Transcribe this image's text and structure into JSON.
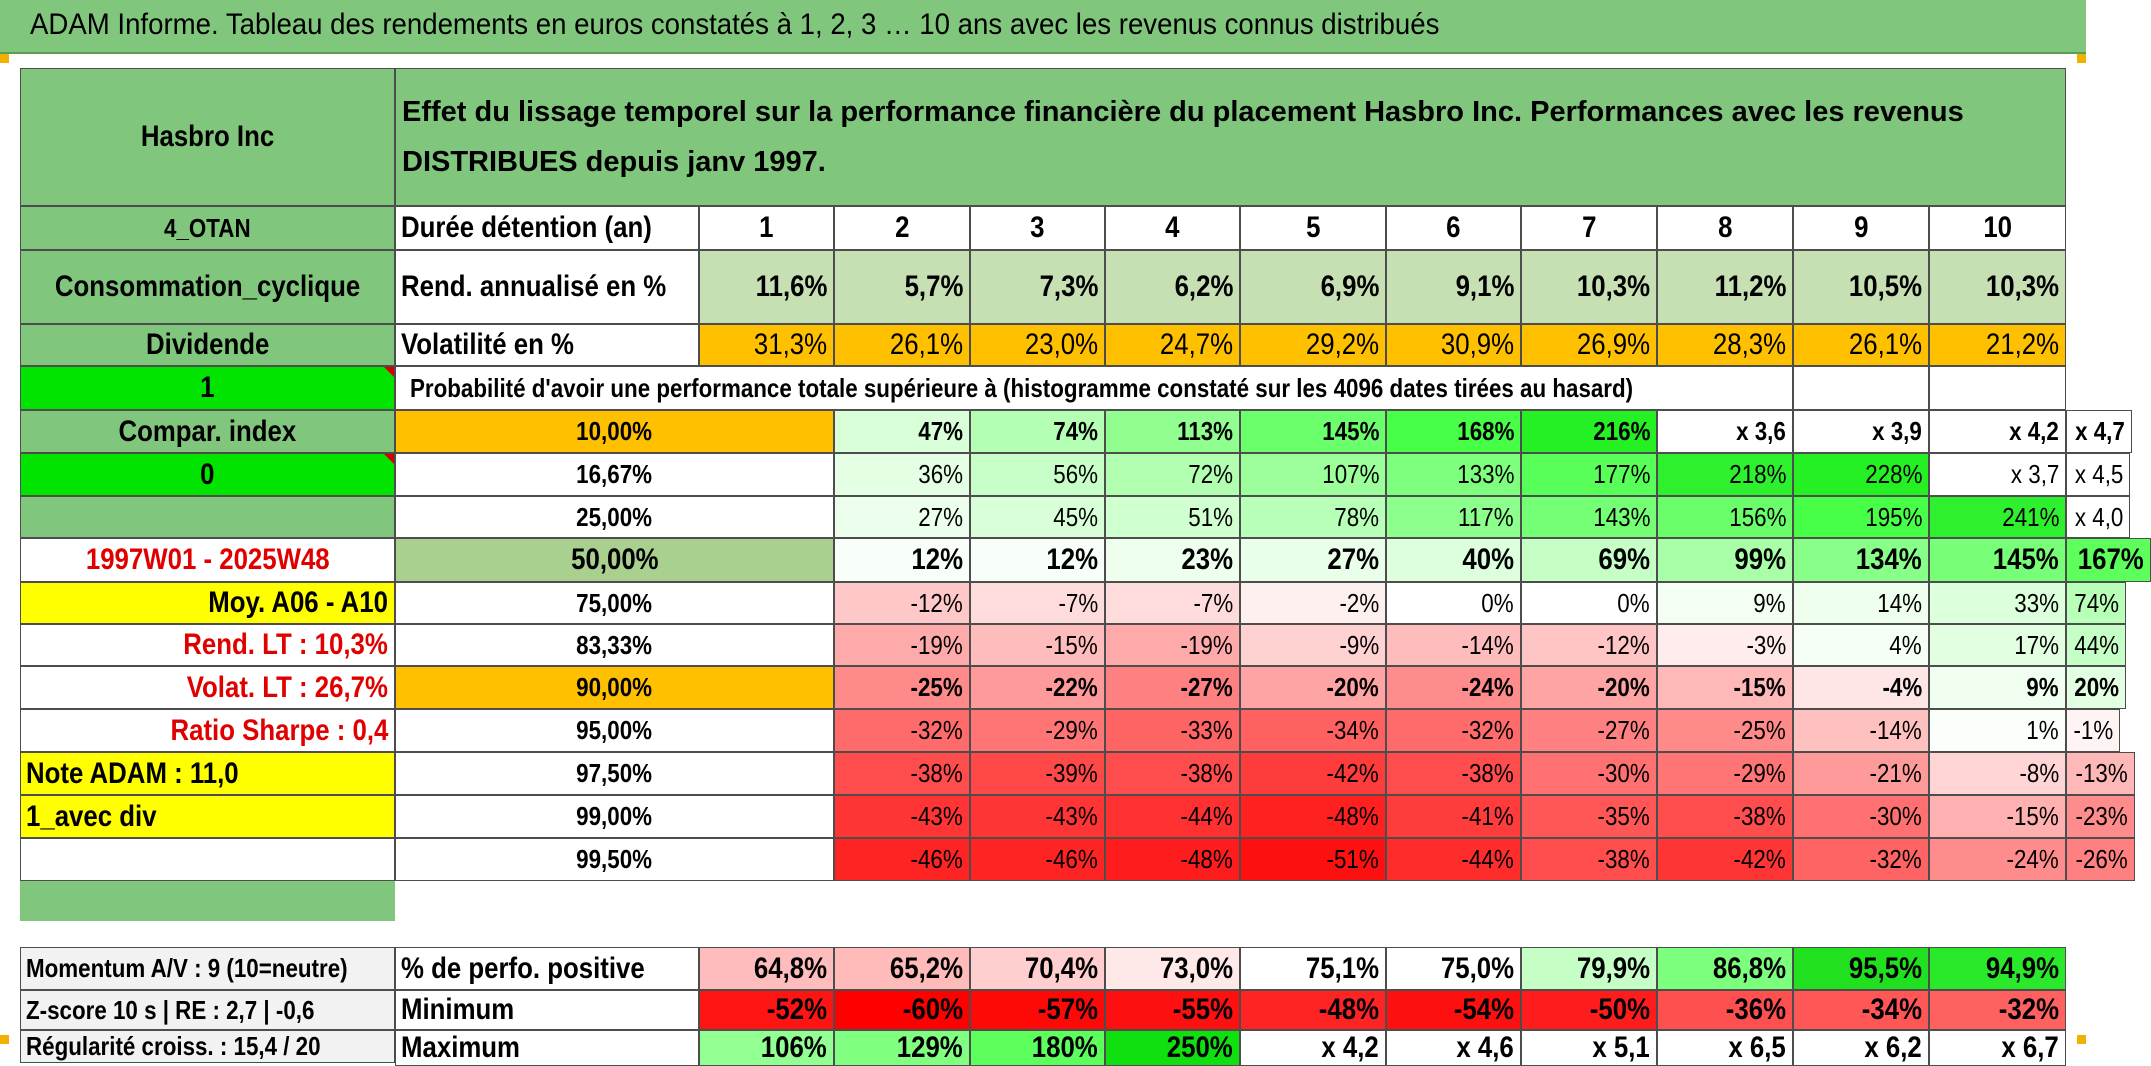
{
  "title": "ADAM Informe. Tableau des rendements en euros constatés à 1, 2, 3 … 10 ans avec les revenus connus distribués",
  "header": {
    "asset": "Hasbro Inc",
    "description": "Effet du lissage temporel sur la performance financière du placement Hasbro Inc. Performances avec les revenus DISTRIBUES depuis janv 1997."
  },
  "sidebar": {
    "category": "4_OTAN",
    "sector": "Consommation_cyclique",
    "income_type": "Dividende",
    "flag1": "1",
    "compar_label": "Compar. index",
    "flag2": "0",
    "period": "1997W01 - 2025W48",
    "moy": "Moy. A06 - A10",
    "rend_lt": "Rend. LT :   10,3%",
    "volat_lt": "Volat. LT :   26,7%",
    "sharpe": "Ratio Sharpe :   0,4",
    "note": "Note ADAM : 11,0",
    "avec_div": "1_avec div",
    "momentum": "Momentum A/V : 9 (10=neutre)",
    "zscore": "Z-score 10 s | RE : 2,7 | -0,6",
    "regularite": "Régularité croiss. : 15,4 / 20"
  },
  "durations": {
    "label": "Durée détention (an)",
    "values": [
      "1",
      "2",
      "3",
      "4",
      "5",
      "6",
      "7",
      "8",
      "9",
      "10"
    ]
  },
  "rend_annualise": {
    "label": "Rend. annualisé en %",
    "values": [
      "11,6%",
      "5,7%",
      "7,3%",
      "6,2%",
      "6,9%",
      "9,1%",
      "10,3%",
      "11,2%",
      "10,5%",
      "10,3%"
    ]
  },
  "volatilite": {
    "label": "Volatilité en %",
    "values": [
      "31,3%",
      "26,1%",
      "23,0%",
      "24,7%",
      "29,2%",
      "30,9%",
      "26,9%",
      "28,3%",
      "26,1%",
      "21,2%"
    ]
  },
  "probability_title": "Probabilité d'avoir une performance totale supérieure à (histogramme constaté sur les 4096 dates tirées au hasard)",
  "probability_rows": [
    {
      "pct": "10,00%",
      "values": [
        "47%",
        "74%",
        "113%",
        "145%",
        "168%",
        "216%",
        "x 3,6",
        "x 3,9",
        "x 4,2",
        "x 4,7"
      ]
    },
    {
      "pct": "16,67%",
      "values": [
        "36%",
        "56%",
        "72%",
        "107%",
        "133%",
        "177%",
        "218%",
        "228%",
        "x 3,7",
        "x 4,5"
      ]
    },
    {
      "pct": "25,00%",
      "values": [
        "27%",
        "45%",
        "51%",
        "78%",
        "117%",
        "143%",
        "156%",
        "195%",
        "241%",
        "x 4,0"
      ]
    },
    {
      "pct": "50,00%",
      "values": [
        "12%",
        "12%",
        "23%",
        "27%",
        "40%",
        "69%",
        "99%",
        "134%",
        "145%",
        "167%"
      ]
    },
    {
      "pct": "75,00%",
      "values": [
        "-12%",
        "-7%",
        "-7%",
        "-2%",
        "0%",
        "0%",
        "9%",
        "14%",
        "33%",
        "74%"
      ]
    },
    {
      "pct": "83,33%",
      "values": [
        "-19%",
        "-15%",
        "-19%",
        "-9%",
        "-14%",
        "-12%",
        "-3%",
        "4%",
        "17%",
        "44%"
      ]
    },
    {
      "pct": "90,00%",
      "values": [
        "-25%",
        "-22%",
        "-27%",
        "-20%",
        "-24%",
        "-20%",
        "-15%",
        "-4%",
        "9%",
        "20%"
      ]
    },
    {
      "pct": "95,00%",
      "values": [
        "-32%",
        "-29%",
        "-33%",
        "-34%",
        "-32%",
        "-27%",
        "-25%",
        "-14%",
        "1%",
        "-1%"
      ]
    },
    {
      "pct": "97,50%",
      "values": [
        "-38%",
        "-39%",
        "-38%",
        "-42%",
        "-38%",
        "-30%",
        "-29%",
        "-21%",
        "-8%",
        "-13%"
      ]
    },
    {
      "pct": "99,00%",
      "values": [
        "-43%",
        "-43%",
        "-44%",
        "-48%",
        "-41%",
        "-35%",
        "-38%",
        "-30%",
        "-15%",
        "-23%"
      ]
    },
    {
      "pct": "99,50%",
      "values": [
        "-46%",
        "-46%",
        "-48%",
        "-51%",
        "-44%",
        "-38%",
        "-42%",
        "-32%",
        "-24%",
        "-26%"
      ]
    }
  ],
  "stats": [
    {
      "label": "% de perfo. positive",
      "values": [
        "64,8%",
        "65,2%",
        "70,4%",
        "73,0%",
        "75,1%",
        "75,0%",
        "79,9%",
        "86,8%",
        "95,5%",
        "94,9%"
      ]
    },
    {
      "label": "Minimum",
      "values": [
        "-52%",
        "-60%",
        "-57%",
        "-55%",
        "-48%",
        "-54%",
        "-50%",
        "-36%",
        "-34%",
        "-32%"
      ]
    },
    {
      "label": "Maximum",
      "values": [
        "106%",
        "129%",
        "180%",
        "250%",
        "x 4,2",
        "x 4,6",
        "x 5,1",
        "x 6,5",
        "x 6,2",
        "x 6,7"
      ]
    }
  ],
  "colors": {
    "header_green": "#80c77d",
    "sidebar_green": "#80c77d",
    "bright_green": "#00e400",
    "orange": "#ffc000",
    "yellow": "#ffff00",
    "rend_green": "#c6e0b4",
    "row50_pct": "#a9d08e"
  },
  "cell_colors": {
    "probability": [
      [
        "#d8ffd8",
        "#b4ffb4",
        "#90ff90",
        "#6cff6c",
        "#48ff48",
        "#24f024",
        "#ffffff",
        "#ffffff",
        "#ffffff",
        "#ffffff"
      ],
      [
        "#e4ffe4",
        "#c8ffc8",
        "#b2ffb2",
        "#9cff9c",
        "#7eff7e",
        "#58ff58",
        "#2ef02e",
        "#24f024",
        "#ffffff",
        "#ffffff"
      ],
      [
        "#ecffec",
        "#d8ffd8",
        "#d0ffd0",
        "#b8ffb8",
        "#8cff8c",
        "#74ff74",
        "#6aff6a",
        "#46ff46",
        "#2ef02e",
        "#ffffff"
      ],
      [
        "#f8fff8",
        "#f8fff8",
        "#eeffee",
        "#eaffea",
        "#deffde",
        "#c6ffc6",
        "#a8ffa8",
        "#88ff88",
        "#78ff78",
        "#5cff5c"
      ],
      [
        "#ffc8c8",
        "#ffdcdc",
        "#ffdcdc",
        "#fff0f0",
        "#ffffff",
        "#ffffff",
        "#f4fff4",
        "#eeffee",
        "#dcffdc",
        "#b8ffb8"
      ],
      [
        "#ffaaaa",
        "#ffbcbc",
        "#ffaaaa",
        "#ffd2d2",
        "#ffbcbc",
        "#ffc4c4",
        "#ffecec",
        "#f6fff6",
        "#e2ffe2",
        "#c6ffc6"
      ],
      [
        "#ff8a8a",
        "#ff9a9a",
        "#ff8080",
        "#ffa4a4",
        "#ff8c8c",
        "#ffa4a4",
        "#ffb8b8",
        "#ffe6e6",
        "#f0fff0",
        "#e2ffe2"
      ],
      [
        "#ff6a6a",
        "#ff7474",
        "#ff6464",
        "#ff6060",
        "#ff6a6a",
        "#ff8080",
        "#ff8a8a",
        "#ffc0c0",
        "#fafffa",
        "#fff4f4"
      ],
      [
        "#ff4c4c",
        "#ff4848",
        "#ff4c4c",
        "#ff3c3c",
        "#ff4c4c",
        "#ff7070",
        "#ff7474",
        "#ff9a9a",
        "#ffd4d4",
        "#ffb8b8"
      ],
      [
        "#ff3434",
        "#ff3434",
        "#ff3030",
        "#ff2020",
        "#ff3c3c",
        "#ff5656",
        "#ff4c4c",
        "#ff7070",
        "#ffb0b0",
        "#ff8c8c"
      ],
      [
        "#ff2424",
        "#ff2424",
        "#ff1c1c",
        "#ff1010",
        "#ff2c2c",
        "#ff4c4c",
        "#ff3434",
        "#ff6464",
        "#ff8c8c",
        "#ff8080"
      ]
    ],
    "stats": [
      [
        "#ffbcbc",
        "#ffbaba",
        "#ffcfcf",
        "#ffe8e8",
        "#ffffff",
        "#ffffff",
        "#c6ffc6",
        "#7cff7c",
        "#20e020",
        "#2ae82a"
      ],
      [
        "#ff1414",
        "#ff0000",
        "#ff0808",
        "#ff1010",
        "#ff2424",
        "#ff1010",
        "#ff1c1c",
        "#ff5050",
        "#ff5656",
        "#ff6060"
      ],
      [
        "#92ff92",
        "#80ff80",
        "#5cff5c",
        "#10e010",
        "#ffffff",
        "#ffffff",
        "#ffffff",
        "#ffffff",
        "#ffffff",
        "#ffffff"
      ]
    ]
  }
}
